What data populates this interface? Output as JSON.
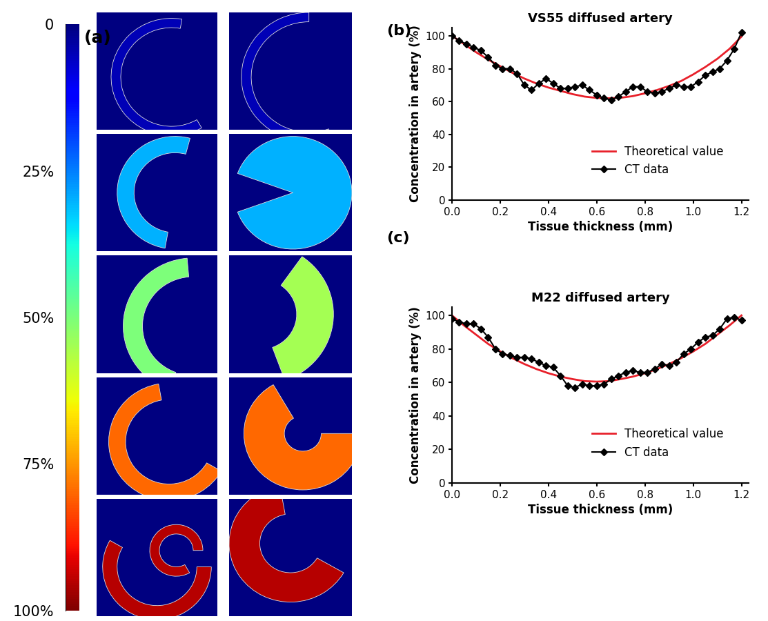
{
  "chart_data": [
    {
      "type": "image_grid",
      "panel_label": "(a)",
      "cells": [
        [
          5,
          5
        ],
        [
          30,
          30
        ],
        [
          50,
          55
        ],
        [
          80,
          80
        ],
        [
          95,
          95
        ]
      ],
      "colorbar": {
        "range": [
          0,
          100
        ],
        "ticks": [
          0,
          {
            "value": 25,
            "label": "25%"
          },
          {
            "value": 50,
            "label": "50%"
          },
          {
            "value": 75,
            "label": "75%"
          },
          {
            "value": 100,
            "label": "100%"
          }
        ]
      }
    },
    {
      "type": "line",
      "panel_label": "(b)",
      "title": "VS55 diffused artery",
      "x_label": "Tissue thickness (mm)",
      "y_label": "Concentration in artery (%)",
      "xlim": [
        0,
        1.23
      ],
      "ylim": [
        0,
        105
      ],
      "xticks": [
        0.0,
        0.2,
        0.4,
        0.6,
        0.8,
        1.0,
        1.2
      ],
      "yticks": [
        0,
        20,
        40,
        60,
        80,
        100
      ],
      "legend": "lower right",
      "series": [
        {
          "name": "Theoretical value",
          "color": "#e8202a",
          "marker": "none",
          "line_style": "solid",
          "x": [
            0,
            0.05,
            0.1,
            0.15,
            0.2,
            0.25,
            0.3,
            0.35,
            0.4,
            0.45,
            0.5,
            0.55,
            0.6,
            0.65,
            0.7,
            0.75,
            0.8,
            0.85,
            0.9,
            0.95,
            1.0,
            1.05,
            1.1,
            1.15,
            1.2
          ],
          "values": [
            100,
            95,
            90,
            85.5,
            81.5,
            77.5,
            74,
            71,
            68.5,
            66.5,
            64.5,
            63,
            62.2,
            62,
            62.3,
            63.3,
            65,
            67,
            69.5,
            72.5,
            76.5,
            81,
            86,
            92,
            99.5
          ]
        },
        {
          "name": "CT data",
          "color": "#000000",
          "marker": "diamond",
          "line_style": "solid",
          "x": [
            0,
            0.03,
            0.06,
            0.09,
            0.12,
            0.15,
            0.18,
            0.21,
            0.24,
            0.27,
            0.3,
            0.33,
            0.36,
            0.39,
            0.42,
            0.45,
            0.48,
            0.51,
            0.54,
            0.57,
            0.6,
            0.63,
            0.66,
            0.69,
            0.72,
            0.75,
            0.78,
            0.81,
            0.84,
            0.87,
            0.9,
            0.93,
            0.96,
            0.99,
            1.02,
            1.05,
            1.08,
            1.11,
            1.14,
            1.17,
            1.2
          ],
          "values": [
            100,
            97,
            95,
            93,
            91,
            87,
            82,
            80,
            80,
            77,
            70,
            67,
            71,
            74,
            71,
            68,
            68,
            69,
            70,
            67,
            64,
            62,
            61,
            63,
            66,
            69,
            69,
            66,
            65,
            66,
            68,
            70,
            69,
            69,
            72,
            76,
            78,
            80,
            85,
            92,
            102
          ]
        }
      ]
    },
    {
      "type": "line",
      "panel_label": "(c)",
      "title": "M22 diffused artery",
      "x_label": "Tissue thickness (mm)",
      "y_label": "Concentration in artery (%)",
      "xlim": [
        0,
        1.23
      ],
      "ylim": [
        0,
        105
      ],
      "xticks": [
        0.0,
        0.2,
        0.4,
        0.6,
        0.8,
        1.0,
        1.2
      ],
      "yticks": [
        0,
        20,
        40,
        60,
        80,
        100
      ],
      "legend": "lower right",
      "series": [
        {
          "name": "Theoretical value",
          "color": "#e8202a",
          "marker": "none",
          "line_style": "solid",
          "x": [
            0,
            0.05,
            0.1,
            0.15,
            0.2,
            0.25,
            0.3,
            0.35,
            0.4,
            0.45,
            0.5,
            0.55,
            0.6,
            0.65,
            0.7,
            0.75,
            0.8,
            0.85,
            0.9,
            0.95,
            1.0,
            1.05,
            1.1,
            1.15,
            1.2
          ],
          "values": [
            100,
            94,
            88.5,
            83,
            78.5,
            74.5,
            71,
            68,
            65.5,
            63.5,
            62,
            60.8,
            60.5,
            60.8,
            62,
            63.5,
            65.5,
            68,
            71,
            74.5,
            78.5,
            83,
            88.5,
            94,
            100
          ]
        },
        {
          "name": "CT data",
          "color": "#000000",
          "marker": "diamond",
          "line_style": "solid",
          "x": [
            0,
            0.03,
            0.06,
            0.09,
            0.12,
            0.15,
            0.18,
            0.21,
            0.24,
            0.27,
            0.3,
            0.33,
            0.36,
            0.39,
            0.42,
            0.45,
            0.48,
            0.51,
            0.54,
            0.57,
            0.6,
            0.63,
            0.66,
            0.69,
            0.72,
            0.75,
            0.78,
            0.81,
            0.84,
            0.87,
            0.9,
            0.93,
            0.96,
            0.99,
            1.02,
            1.05,
            1.08,
            1.11,
            1.14,
            1.17,
            1.2
          ],
          "values": [
            98,
            96,
            95,
            95,
            92,
            87,
            80,
            77,
            76,
            75,
            75,
            74,
            72,
            70,
            69,
            64,
            58,
            57,
            59,
            58,
            58,
            59,
            62,
            64,
            66,
            67,
            66,
            66,
            68,
            71,
            70,
            72,
            77,
            80,
            84,
            87,
            88,
            92,
            98,
            99,
            97
          ]
        }
      ]
    }
  ]
}
